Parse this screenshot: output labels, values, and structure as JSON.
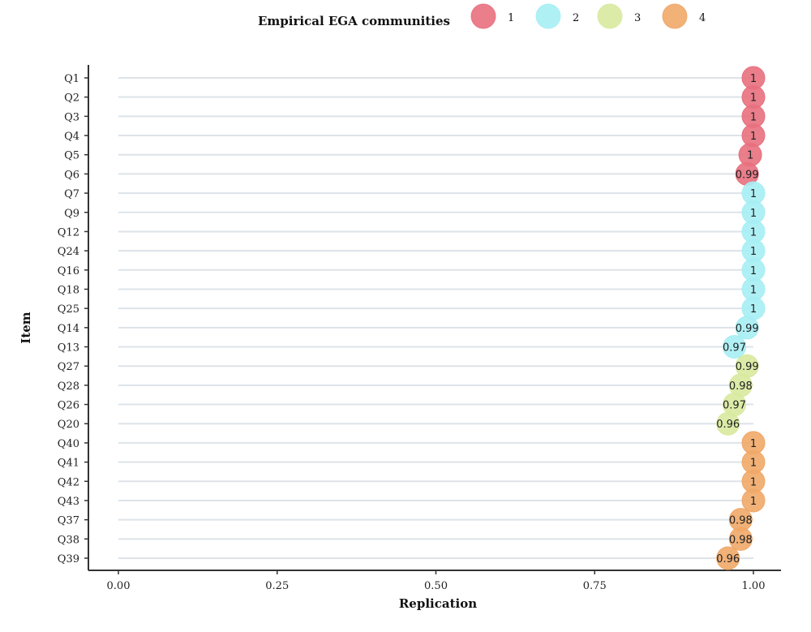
{
  "chart_data": {
    "type": "scatter",
    "xlabel": "Replication",
    "ylabel": "Item",
    "xlim": [
      0,
      1
    ],
    "x_ticks": [
      "0.00",
      "0.25",
      "0.50",
      "0.75",
      "1.00"
    ],
    "x_tick_values": [
      0,
      0.25,
      0.5,
      0.75,
      1.0
    ],
    "grid": "horizontal",
    "legend": {
      "title": "Empirical EGA communities",
      "placement": "top",
      "entries": [
        {
          "label": "1",
          "color": "#e8707e"
        },
        {
          "label": "2",
          "color": "#a6eef4"
        },
        {
          "label": "3",
          "color": "#d8ea9e"
        },
        {
          "label": "4",
          "color": "#f0a868"
        }
      ]
    },
    "points": [
      {
        "item": "Q1",
        "value": 1.0,
        "label": "1",
        "community": 1
      },
      {
        "item": "Q2",
        "value": 1.0,
        "label": "1",
        "community": 1
      },
      {
        "item": "Q3",
        "value": 1.0,
        "label": "1",
        "community": 1
      },
      {
        "item": "Q4",
        "value": 1.0,
        "label": "1",
        "community": 1
      },
      {
        "item": "Q5",
        "value": 0.995,
        "label": "1",
        "community": 1
      },
      {
        "item": "Q6",
        "value": 0.99,
        "label": "0.99",
        "community": 1
      },
      {
        "item": "Q7",
        "value": 1.0,
        "label": "1",
        "community": 2
      },
      {
        "item": "Q9",
        "value": 1.0,
        "label": "1",
        "community": 2
      },
      {
        "item": "Q12",
        "value": 1.0,
        "label": "1",
        "community": 2
      },
      {
        "item": "Q24",
        "value": 1.0,
        "label": "1",
        "community": 2
      },
      {
        "item": "Q16",
        "value": 1.0,
        "label": "1",
        "community": 2
      },
      {
        "item": "Q18",
        "value": 1.0,
        "label": "1",
        "community": 2
      },
      {
        "item": "Q25",
        "value": 1.0,
        "label": "1",
        "community": 2
      },
      {
        "item": "Q14",
        "value": 0.99,
        "label": "0.99",
        "community": 2
      },
      {
        "item": "Q13",
        "value": 0.97,
        "label": "0.97",
        "community": 2
      },
      {
        "item": "Q27",
        "value": 0.99,
        "label": "0.99",
        "community": 3
      },
      {
        "item": "Q28",
        "value": 0.98,
        "label": "0.98",
        "community": 3
      },
      {
        "item": "Q26",
        "value": 0.97,
        "label": "0.97",
        "community": 3
      },
      {
        "item": "Q20",
        "value": 0.96,
        "label": "0.96",
        "community": 3
      },
      {
        "item": "Q40",
        "value": 1.0,
        "label": "1",
        "community": 4
      },
      {
        "item": "Q41",
        "value": 1.0,
        "label": "1",
        "community": 4
      },
      {
        "item": "Q42",
        "value": 1.0,
        "label": "1",
        "community": 4
      },
      {
        "item": "Q43",
        "value": 1.0,
        "label": "1",
        "community": 4
      },
      {
        "item": "Q37",
        "value": 0.98,
        "label": "0.98",
        "community": 4
      },
      {
        "item": "Q38",
        "value": 0.98,
        "label": "0.98",
        "community": 4
      },
      {
        "item": "Q39",
        "value": 0.96,
        "label": "0.96",
        "community": 4
      }
    ]
  }
}
